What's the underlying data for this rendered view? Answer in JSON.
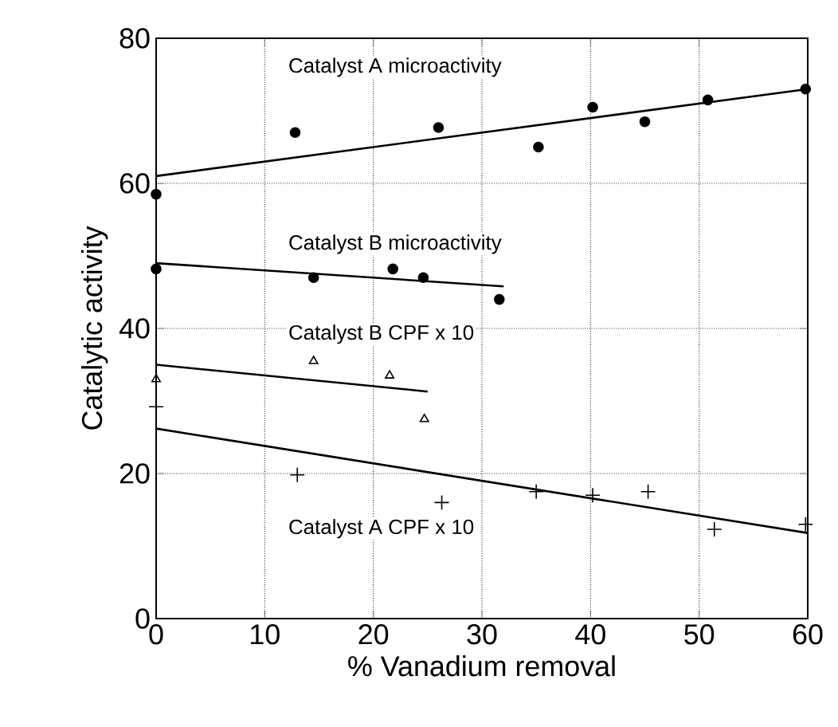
{
  "chart_data": {
    "type": "scatter",
    "xlabel": "% Vanadium removal",
    "ylabel": "Catalytic activity",
    "xlim": [
      0,
      60
    ],
    "ylim": [
      0,
      80
    ],
    "xticks": [
      0,
      10,
      20,
      30,
      40,
      50,
      60
    ],
    "yticks": [
      0,
      20,
      40,
      60,
      80
    ],
    "grid": true,
    "series": [
      {
        "name": "Catalyst A microactivity",
        "color": "#000000",
        "marker": "circle",
        "x": [
          0,
          12.8,
          26,
          35.2,
          40.2,
          45,
          50.8,
          59.8
        ],
        "values": [
          58.5,
          67,
          67.7,
          65,
          70.5,
          68.5,
          71.5,
          73
        ]
      },
      {
        "name": "Catalyst B microactivity",
        "color": "#000000",
        "marker": "circle",
        "x": [
          0,
          14.5,
          21.8,
          24.6,
          31.6
        ],
        "values": [
          48.2,
          47,
          48.2,
          47,
          44
        ]
      },
      {
        "name": "Catalyst B CPF x 10",
        "color": "#000000",
        "marker": "triangle",
        "x": [
          0,
          14.5,
          21.5,
          24.7
        ],
        "values": [
          33,
          35.5,
          33.5,
          27.5
        ]
      },
      {
        "name": "Catalyst A CPF x 10",
        "color": "#000000",
        "marker": "cross",
        "x": [
          0,
          13,
          26.3,
          35,
          40.2,
          45.3,
          51.4,
          59.8
        ],
        "values": [
          29.2,
          19.8,
          16,
          17.5,
          17,
          17.5,
          12.3,
          13
        ]
      },
      {
        "type": "line",
        "color": "#000000",
        "marker": "none",
        "x": [
          0,
          60
        ],
        "values": [
          61,
          73
        ]
      },
      {
        "type": "line",
        "color": "#000000",
        "marker": "none",
        "x": [
          0,
          32
        ],
        "values": [
          49,
          45.8
        ]
      },
      {
        "type": "line",
        "color": "#000000",
        "marker": "none",
        "x": [
          0,
          25
        ],
        "values": [
          35,
          31.3
        ]
      },
      {
        "type": "line",
        "color": "#000000",
        "marker": "none",
        "x": [
          0,
          60
        ],
        "values": [
          26.2,
          11.8
        ]
      }
    ]
  }
}
